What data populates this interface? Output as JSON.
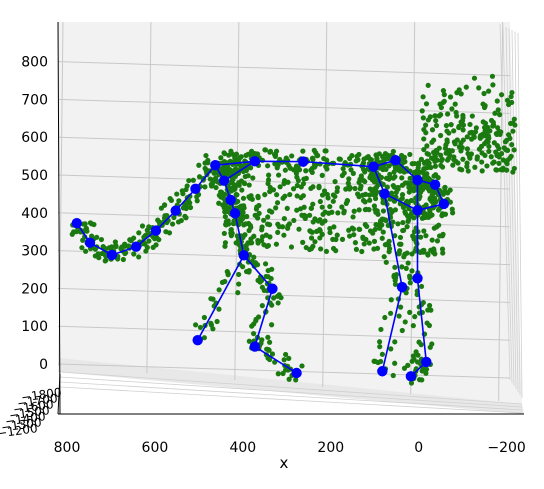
{
  "chart_data": {
    "type": "scatter",
    "title": "",
    "xlabel": "x",
    "ylabel": "",
    "zlabel": "",
    "projection": "3d",
    "grid": true,
    "xlim": [
      800,
      -300
    ],
    "zlim": [
      0,
      880
    ],
    "x_ticks": [
      "800",
      "600",
      "400",
      "200",
      "0",
      "−200"
    ],
    "z_ticks": [
      "0",
      "100",
      "200",
      "300",
      "400",
      "500",
      "600",
      "700",
      "800"
    ],
    "y_ticks": [
      "−1800",
      "−1700",
      "−1600",
      "−1500",
      "−1400",
      "−1300",
      "−1200"
    ],
    "colors": {
      "cloud": "#1a7a10",
      "skeleton": "#0000ff"
    },
    "skeleton": {
      "name": "",
      "joints": [
        [
          755,
          375
        ],
        [
          725,
          325
        ],
        [
          675,
          295
        ],
        [
          620,
          320
        ],
        [
          575,
          365
        ],
        [
          530,
          420
        ],
        [
          485,
          480
        ],
        [
          440,
          545
        ],
        [
          420,
          505
        ],
        [
          405,
          455
        ],
        [
          350,
          560
        ],
        [
          240,
          565
        ],
        [
          80,
          560
        ],
        [
          30,
          580
        ],
        [
          -20,
          530
        ],
        [
          -60,
          520
        ],
        [
          -80,
          470
        ],
        [
          -20,
          450
        ],
        [
          55,
          490
        ],
        [
          15,
          245
        ],
        [
          395,
          420
        ],
        [
          375,
          310
        ],
        [
          310,
          225
        ],
        [
          350,
          70
        ],
        [
          480,
          80
        ],
        [
          255,
          5
        ],
        [
          60,
          20
        ],
        [
          -20,
          270
        ],
        [
          -40,
          50
        ],
        [
          -5,
          10
        ]
      ],
      "bones": [
        [
          0,
          1
        ],
        [
          1,
          2
        ],
        [
          2,
          3
        ],
        [
          3,
          4
        ],
        [
          4,
          5
        ],
        [
          5,
          6
        ],
        [
          6,
          7
        ],
        [
          7,
          10
        ],
        [
          10,
          11
        ],
        [
          11,
          12
        ],
        [
          12,
          13
        ],
        [
          13,
          14
        ],
        [
          14,
          15
        ],
        [
          15,
          16
        ],
        [
          16,
          17
        ],
        [
          17,
          18
        ],
        [
          18,
          12
        ],
        [
          18,
          19
        ],
        [
          14,
          27
        ],
        [
          7,
          8
        ],
        [
          8,
          9
        ],
        [
          9,
          20
        ],
        [
          10,
          8
        ],
        [
          20,
          21
        ],
        [
          21,
          22
        ],
        [
          22,
          23
        ],
        [
          21,
          24
        ],
        [
          23,
          25
        ],
        [
          19,
          26
        ],
        [
          27,
          28
        ],
        [
          28,
          29
        ]
      ]
    }
  }
}
